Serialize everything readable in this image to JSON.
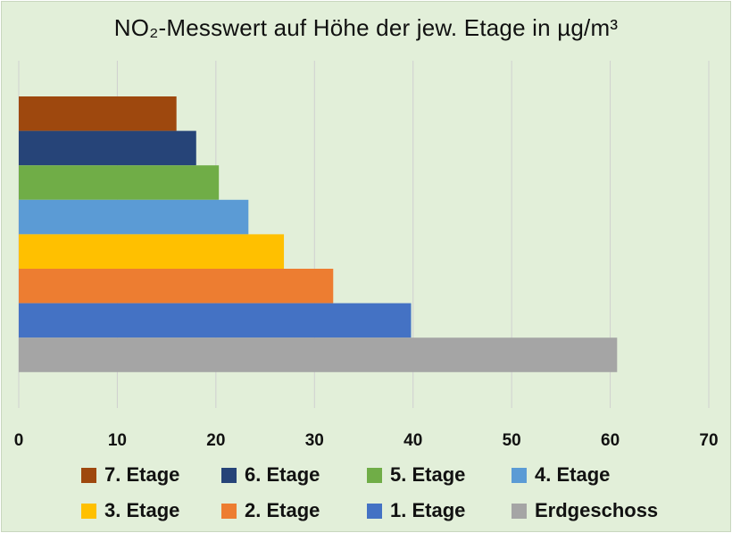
{
  "chart_data": {
    "type": "bar",
    "orientation": "horizontal",
    "title": "NO₂-Messwert auf Höhe der jew. Etage in µg/m³",
    "xlabel": "",
    "ylabel": "",
    "xlim": [
      0,
      70
    ],
    "xticks": [
      0,
      10,
      20,
      30,
      40,
      50,
      60,
      70
    ],
    "grid": "vertical",
    "legend_position": "bottom",
    "categories": [
      "7. Etage",
      "6. Etage",
      "5. Etage",
      "4. Etage",
      "3. Etage",
      "2. Etage",
      "1. Etage",
      "Erdgeschoss"
    ],
    "values": [
      16,
      18,
      20.3,
      23.3,
      26.9,
      31.9,
      39.8,
      60.7
    ],
    "colors": [
      "#9e480e",
      "#264478",
      "#70ad47",
      "#5b9bd5",
      "#ffc000",
      "#ed7d31",
      "#4472c4",
      "#a5a5a5"
    ]
  }
}
